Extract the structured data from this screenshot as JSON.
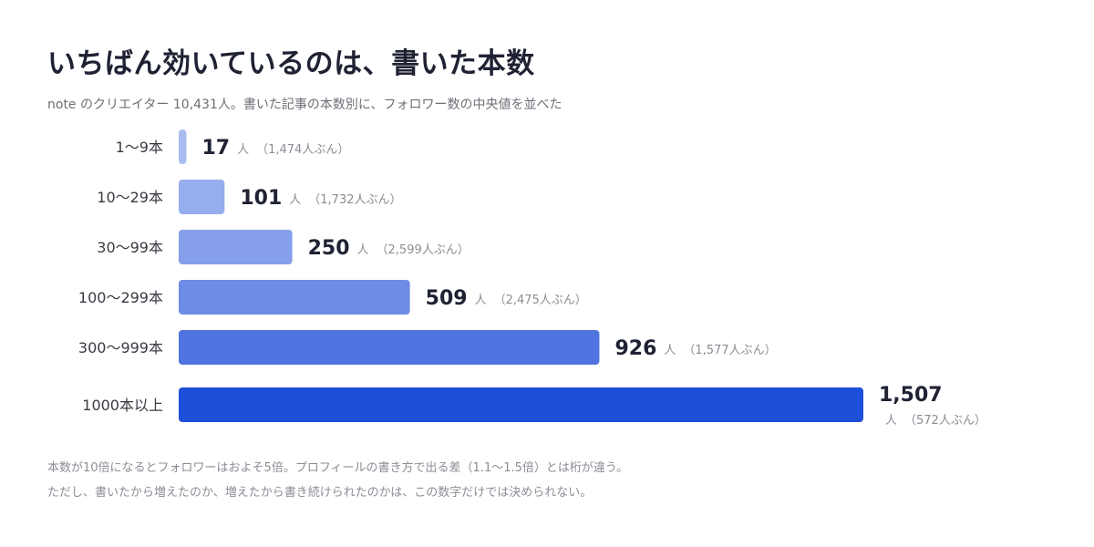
{
  "header": {
    "title": "いちばん効いているのは、書いた本数",
    "subtitle": "note のクリエイター 10,431人。書いた記事の本数別に、フォロワー数の中央値を並べた"
  },
  "chart_data": {
    "type": "bar",
    "orientation": "horizontal",
    "value_unit": "人",
    "categories": [
      "1〜9本",
      "10〜29本",
      "30〜99本",
      "100〜299本",
      "300〜999本",
      "1000本以上"
    ],
    "values": [
      17,
      101,
      250,
      509,
      926,
      1507
    ],
    "value_labels": [
      "17",
      "101",
      "250",
      "509",
      "926",
      "1,507"
    ],
    "sample_notes": [
      "（1,474人ぶん）",
      "（1,732人ぶん）",
      "（2,599人ぶん）",
      "（2,475人ぶん）",
      "（1,577人ぶん）",
      "（572人ぶん）"
    ],
    "colors": [
      "#a9bcef",
      "#97aeee",
      "#869fea",
      "#6d8ce6",
      "#4f74df",
      "#1e4fd8"
    ],
    "xlim": [
      0,
      1507
    ],
    "grid": false,
    "legend": "none"
  },
  "footnotes": [
    "本数が10倍になるとフォロワーはおよそ5倍。プロフィールの書き方で出る差（1.1〜1.5倍）とは桁が違う。",
    "ただし、書いたから増えたのか、増えたから書き続けられたのかは、この数字だけでは決められない。"
  ]
}
